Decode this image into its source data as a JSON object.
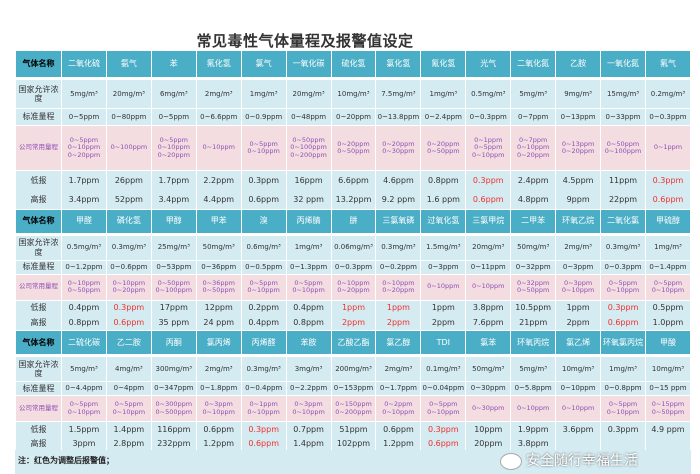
{
  "title": "常见毒性气体量程及报警值设定",
  "row_labels": {
    "gas_name": "气体名称",
    "national": "国家允许浓度",
    "standard": "标准量程",
    "company": "公司常用量程",
    "low": "低报",
    "high": "高报"
  },
  "colors": {
    "header": "#4aaec6",
    "row": "#d4ebf2",
    "company_row": "#f3dde0",
    "company_text": "#8f4fb5",
    "adjusted": "#f0302e"
  },
  "note": "注：红色为调整后报警值；",
  "watermark": "安全随行幸福生活",
  "sections": [
    {
      "gases": [
        {
          "name": "二氧化硫",
          "national": "5mg/m³",
          "standard": "0~5ppm",
          "company": [
            "0~5ppm",
            "0~10ppm",
            "0~20ppm"
          ],
          "low": "1.7ppm",
          "high": "3.4ppm",
          "adjusted": false
        },
        {
          "name": "氨气",
          "national": "20mg/m³",
          "standard": "0~80ppm",
          "company": [
            "0~100ppm"
          ],
          "low": "26ppm",
          "high": "52ppm",
          "adjusted": false
        },
        {
          "name": "苯",
          "national": "6mg/m³",
          "standard": "0~5ppm",
          "company": [
            "0~5ppm",
            "0~10ppm",
            "0~20ppm"
          ],
          "low": "1.7ppm",
          "high": "3.4ppm",
          "adjusted": false
        },
        {
          "name": "氟化氢",
          "national": "2mg/m³",
          "standard": "0~6.6ppm",
          "company": [
            "0~10ppm"
          ],
          "low": "2.2ppm",
          "high": "4.4ppm",
          "adjusted": false
        },
        {
          "name": "氯气",
          "national": "1mg/m³",
          "standard": "0~0.9ppm",
          "company": [
            "0~5ppm",
            "0~10ppm"
          ],
          "low": "0.3ppm",
          "high": "0.6ppm",
          "adjusted": false
        },
        {
          "name": "一氧化碳",
          "national": "20mg/m³",
          "standard": "0~48ppm",
          "company": [
            "0~50ppm",
            "0~100ppm",
            "0~200ppm"
          ],
          "low": "16ppm",
          "high": "32 ppm",
          "adjusted": false
        },
        {
          "name": "硫化氢",
          "national": "10mg/m³",
          "standard": "0~20ppm",
          "company": [
            "0~20ppm",
            "0~50ppm"
          ],
          "low": "6.6ppm",
          "high": "13.2ppm",
          "adjusted": false
        },
        {
          "name": "氯化氢",
          "national": "7.5mg/m³",
          "standard": "0~13.8ppm",
          "company": [
            "0~20ppm",
            "0~30ppm"
          ],
          "low": "4.6ppm",
          "high": "9.2 ppm",
          "adjusted": false
        },
        {
          "name": "氰化氢",
          "national": "1mg/m³",
          "standard": "0~2.4ppm",
          "company": [
            "0~20ppm",
            "0~50ppm"
          ],
          "low": "0.8ppm",
          "high": "1.6 ppm",
          "adjusted": false
        },
        {
          "name": "光气",
          "national": "0.5mg/m³",
          "standard": "0~0.3ppm",
          "company": [
            "0~1ppm",
            "0~5ppm",
            "0~10ppm"
          ],
          "low": "0.3ppm",
          "high": "0.6ppm",
          "adjusted": true
        },
        {
          "name": "二氧化氮",
          "national": "5mg/m³",
          "standard": "0~7ppm",
          "company": [
            "0~7ppm",
            "0~10ppm",
            "0~20ppm"
          ],
          "low": "2.4ppm",
          "high": "4.8ppm",
          "adjusted": false
        },
        {
          "name": "乙胺",
          "national": "9mg/m³",
          "standard": "0~13ppm",
          "company": [
            "0~13ppm",
            "0~20ppm"
          ],
          "low": "4.5ppm",
          "high": "9ppm",
          "adjusted": false
        },
        {
          "name": "一氧化氮",
          "national": "15mg/m³",
          "standard": "0~33ppm",
          "company": [
            "0~50ppm",
            "0~100ppm"
          ],
          "low": "11ppm",
          "high": "22ppm",
          "adjusted": false
        },
        {
          "name": "氟气",
          "national": "0.2mg/m³",
          "standard": "0~0.3ppm",
          "company": [
            "0~1ppm"
          ],
          "low": "0.3ppm",
          "high": "0.6ppm",
          "adjusted": true
        }
      ]
    },
    {
      "gases": [
        {
          "name": "甲醛",
          "national": "0.5mg/m³",
          "standard": "0~1.2ppm",
          "company": [
            "0~10ppm",
            "0~50ppm"
          ],
          "low": "0.4ppm",
          "high": "0.8ppm",
          "adjusted": false
        },
        {
          "name": "磷化氢",
          "national": "0.3mg/m³",
          "standard": "0~0.6ppm",
          "company": [
            "0~10ppm",
            "0~20ppm"
          ],
          "low": "0.3ppm",
          "high": "0.6ppm",
          "adjusted": true
        },
        {
          "name": "甲醇",
          "national": "25mg/m³",
          "standard": "0~53ppm",
          "company": [
            "0~50ppm",
            "0~100ppm"
          ],
          "low": "17ppm",
          "high": "35 ppm",
          "adjusted": false
        },
        {
          "name": "甲苯",
          "national": "50mg/m³",
          "standard": "0~36ppm",
          "company": [
            "0~36ppm",
            "0~50ppm"
          ],
          "low": "12ppm",
          "high": "24 ppm",
          "adjusted": false
        },
        {
          "name": "溴",
          "national": "0.6mg/m³",
          "standard": "0~0.5ppm",
          "company": [
            "0~5ppm",
            "0~10ppm"
          ],
          "low": "0.2ppm",
          "high": "0.4ppm",
          "adjusted": false
        },
        {
          "name": "丙烯腈",
          "national": "1mg/m³",
          "standard": "0~1.3ppm",
          "company": [
            "0~5ppm",
            "0~10ppm"
          ],
          "low": "0.4ppm",
          "high": "0.8ppm",
          "adjusted": false
        },
        {
          "name": "肼",
          "national": "0.06mg/m³",
          "standard": "0~0.3ppm",
          "company": [
            "0~10ppm",
            "0~20ppm"
          ],
          "low": "1ppm",
          "high": "2ppm",
          "adjusted": true
        },
        {
          "name": "三氯氧磷",
          "national": "0.3mg/m³",
          "standard": "0~0.2ppm",
          "company": [
            "0~10ppm",
            "0~20ppm"
          ],
          "low": "1ppm",
          "high": "2ppm",
          "adjusted": true
        },
        {
          "name": "过氧化氢",
          "national": "1.5mg/m³",
          "standard": "0~3ppm",
          "company": [
            "0~10ppm"
          ],
          "low": "1ppm",
          "high": "2ppm",
          "adjusted": false
        },
        {
          "name": "三氯甲烷",
          "national": "20mg/m³",
          "standard": "0~11ppm",
          "company": [
            "0~10ppm"
          ],
          "low": "3.8ppm",
          "high": "7.6ppm",
          "adjusted": false
        },
        {
          "name": "二甲苯",
          "national": "50mg/m³",
          "standard": "0~32ppm",
          "company": [
            "0~32ppm",
            "0~50ppm"
          ],
          "low": "10.5ppm",
          "high": "21ppm",
          "adjusted": false
        },
        {
          "name": "环氧乙烷",
          "national": "2mg/m³",
          "standard": "0~3ppm",
          "company": [
            "0~3ppm",
            "0~10ppm"
          ],
          "low": "1ppm",
          "high": "2ppm",
          "adjusted": false
        },
        {
          "name": "二氧化氯",
          "national": "0.3mg/m³",
          "standard": "0~0.3ppm",
          "company": [
            "0~5ppm",
            "0~10ppm"
          ],
          "low": "0.3ppm",
          "high": "0.6ppm",
          "adjusted": true
        },
        {
          "name": "甲硫醇",
          "national": "1mg/m³",
          "standard": "0~1.4ppm",
          "company": [
            "0~5ppm",
            "0~10ppm"
          ],
          "low": "0.5ppm",
          "high": "1.0ppm",
          "adjusted": false
        }
      ]
    },
    {
      "gases": [
        {
          "name": "二硫化碳",
          "national": "5mg/m³",
          "standard": "0~4.4ppm",
          "company": [
            "0~5ppm",
            "0~10ppm"
          ],
          "low": "1.5ppm",
          "high": "3ppm",
          "adjusted": false
        },
        {
          "name": "乙二胺",
          "national": "4mg/m³",
          "standard": "0~4ppm",
          "company": [
            "0~5ppm",
            "0~10ppm"
          ],
          "low": "1.4ppm",
          "high": "2.8ppm",
          "adjusted": false
        },
        {
          "name": "丙酮",
          "national": "300mg/m³",
          "standard": "0~347ppm",
          "company": [
            "0~300ppm",
            "0~500ppm"
          ],
          "low": "116ppm",
          "high": "232ppm",
          "adjusted": false
        },
        {
          "name": "氯丙烯",
          "national": "2mg/m³",
          "standard": "0~1.8ppm",
          "company": [
            "0~3ppm",
            "0~10ppm"
          ],
          "low": "0.6ppm",
          "high": "1.2ppm",
          "adjusted": false
        },
        {
          "name": "丙烯醛",
          "national": "0.3mg/m³",
          "standard": "0~0.4ppm",
          "company": [
            "0~1ppm",
            "0~10ppm"
          ],
          "low": "0.3ppm",
          "high": "0.6ppm",
          "adjusted": true
        },
        {
          "name": "苯胺",
          "national": "3mg/m³",
          "standard": "0~2.2ppm",
          "company": [
            "0~3ppm",
            "0~10ppm"
          ],
          "low": "0.7ppm",
          "high": "1.4ppm",
          "adjusted": false
        },
        {
          "name": "乙酸乙酯",
          "national": "200mg/m³",
          "standard": "0~153ppm",
          "company": [
            "0~150ppm",
            "0~200ppm"
          ],
          "low": "51ppm",
          "high": "102ppm",
          "adjusted": false
        },
        {
          "name": "氯乙醇",
          "national": "2mg/m³",
          "standard": "0~1.7ppm",
          "company": [
            "0~2ppm",
            "0~10ppm"
          ],
          "low": "0.6ppm",
          "high": "1.2ppm",
          "adjusted": false
        },
        {
          "name": "TDI",
          "national": "0.1mg/m³",
          "standard": "0~0.04ppm",
          "company": [
            "0~5ppm",
            "0~10ppm"
          ],
          "low": "0.3ppm",
          "high": "0.6ppm",
          "adjusted": true
        },
        {
          "name": "氯苯",
          "national": "50mg/m³",
          "standard": "0~30ppm",
          "company": [
            "0~30ppm"
          ],
          "low": "10ppm",
          "high": "20ppm",
          "adjusted": false
        },
        {
          "name": "环氧丙烷",
          "national": "5mg/m³",
          "standard": "0~5.8ppm",
          "company": [
            "0~10ppm"
          ],
          "low": "1.9ppm",
          "high": "3.8ppm",
          "adjusted": false
        },
        {
          "name": "氯乙烯",
          "national": "10mg/m³",
          "standard": "0~10ppm",
          "company": [
            "0~10ppm"
          ],
          "low": "3.6ppm",
          "high": "",
          "adjusted": false
        },
        {
          "name": "环氧氯丙烷",
          "national": "1mg/m³",
          "standard": "0~0.8ppm",
          "company": [
            "0~5ppm",
            "0~10ppm"
          ],
          "low": "0.3ppm",
          "high": "",
          "adjusted": false
        },
        {
          "name": "甲酸",
          "national": "10mg/m³",
          "standard": "0~15 ppm",
          "company": [
            "0~15ppm",
            "0~50ppm"
          ],
          "low": "4.9 ppm",
          "high": "",
          "adjusted": false
        }
      ]
    }
  ]
}
